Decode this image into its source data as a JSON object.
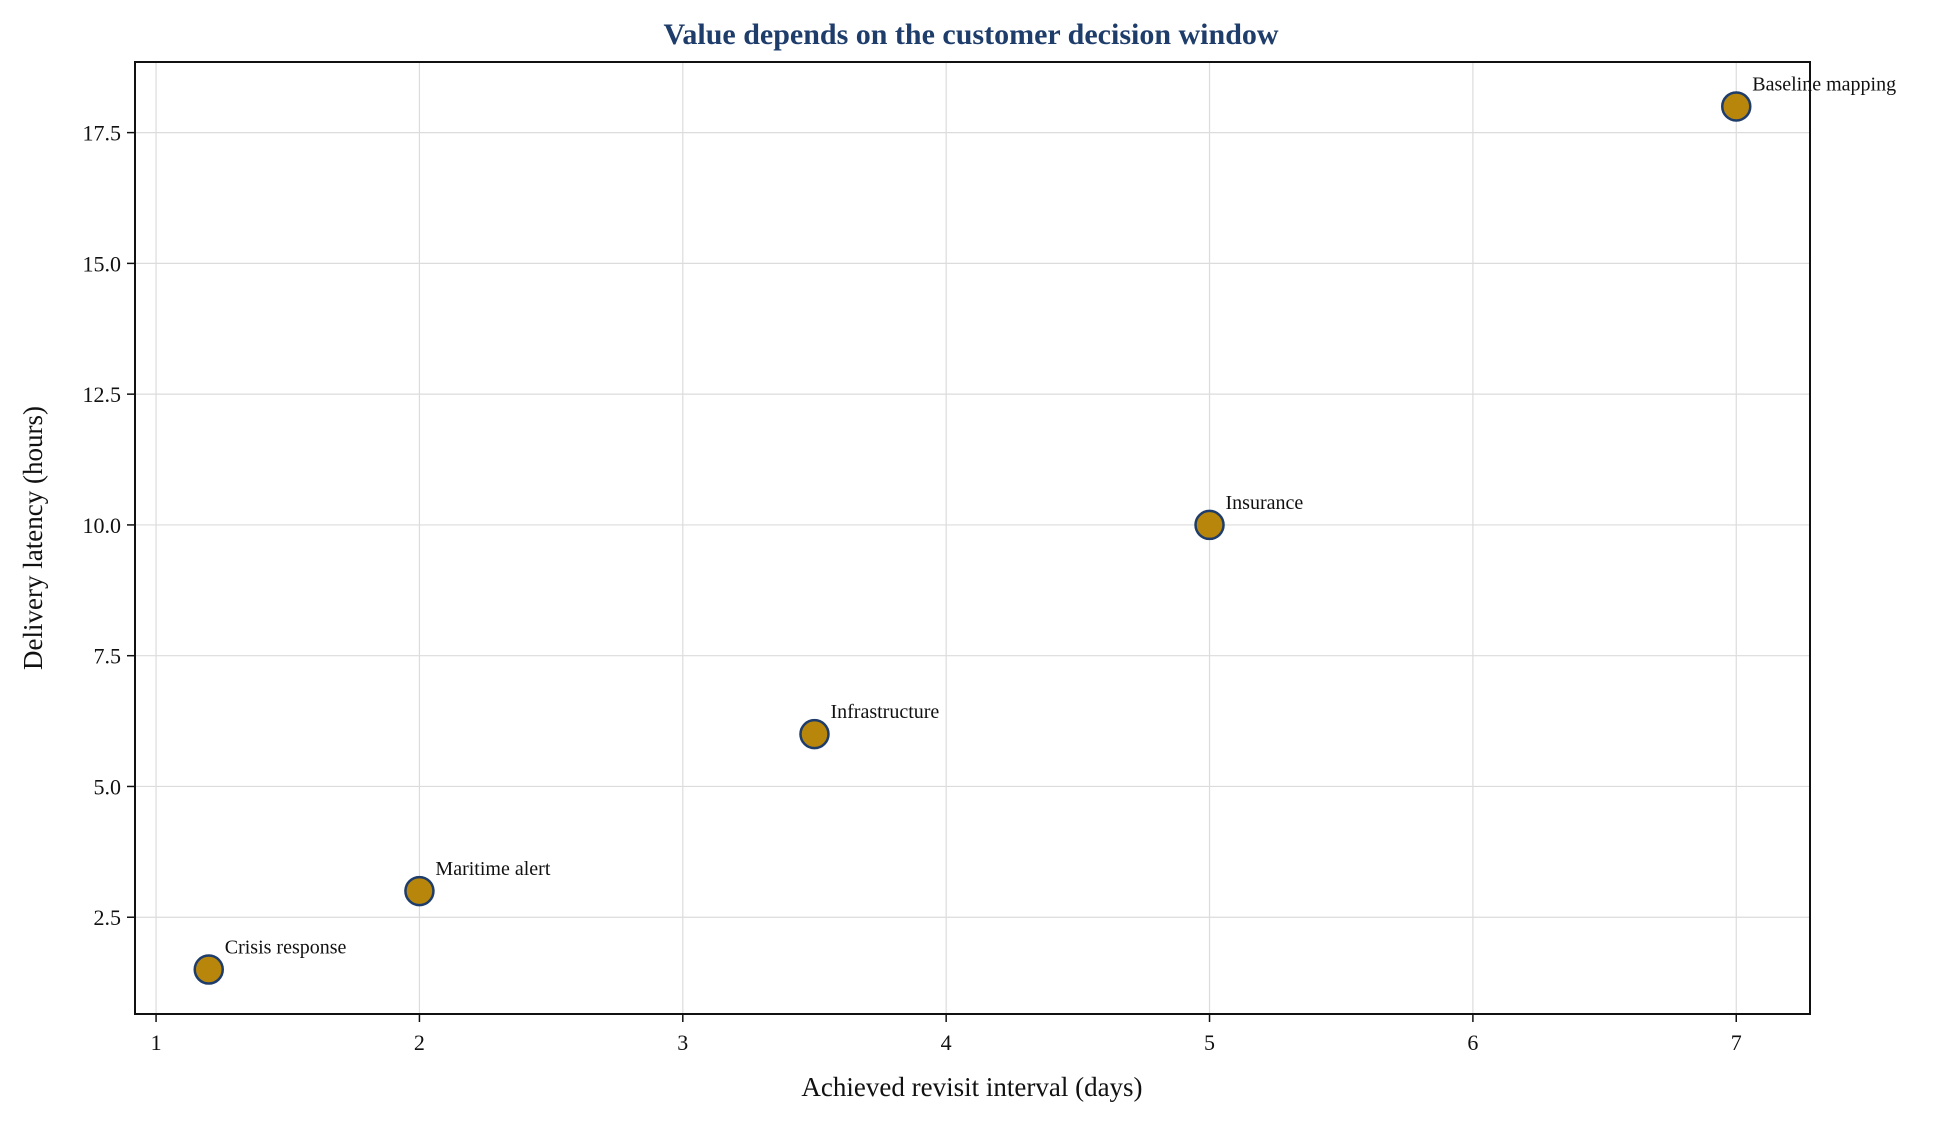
{
  "chart_data": {
    "type": "scatter",
    "title": "Value depends on the customer decision window",
    "xlabel": "Achieved revisit interval (days)",
    "ylabel": "Delivery latency (hours)",
    "xlim": [
      0.92,
      7.28
    ],
    "ylim": [
      0.65,
      18.85
    ],
    "xticks": [
      1,
      2,
      3,
      4,
      5,
      6,
      7
    ],
    "xtick_labels": [
      "1",
      "2",
      "3",
      "4",
      "5",
      "6",
      "7"
    ],
    "yticks": [
      2.5,
      5.0,
      7.5,
      10.0,
      12.5,
      15.0,
      17.5
    ],
    "ytick_labels": [
      "2.5",
      "5.0",
      "7.5",
      "10.0",
      "12.5",
      "15.0",
      "17.5"
    ],
    "grid": true,
    "points": [
      {
        "label": "Crisis response",
        "x": 1.2,
        "y": 1.5
      },
      {
        "label": "Maritime alert",
        "x": 2.0,
        "y": 3.0
      },
      {
        "label": "Infrastructure",
        "x": 3.5,
        "y": 6.0
      },
      {
        "label": "Insurance",
        "x": 5.0,
        "y": 10.0
      },
      {
        "label": "Baseline mapping",
        "x": 7.0,
        "y": 18.0
      }
    ],
    "colors": {
      "point_fill": "#b8860b",
      "point_edge": "#1f3d6b",
      "title": "#1f3d6b"
    }
  }
}
